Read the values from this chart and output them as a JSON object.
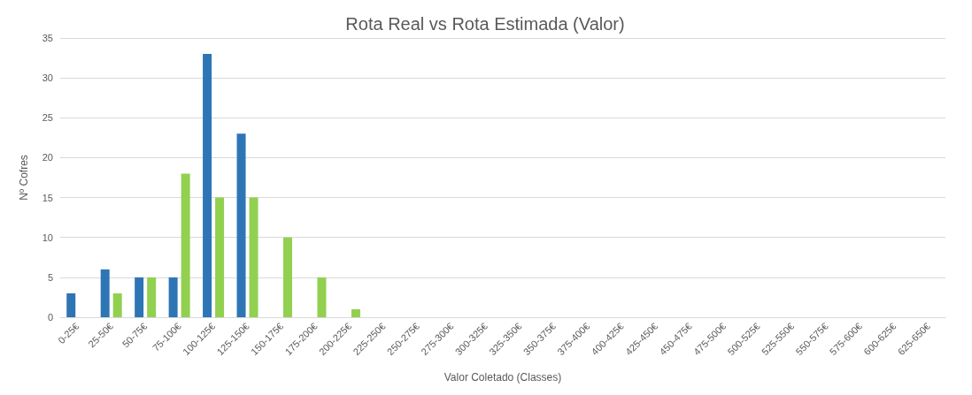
{
  "chart_data": {
    "type": "bar",
    "title": "Rota Real vs Rota Estimada (Valor)",
    "xlabel": "Valor Coletado (Classes)",
    "ylabel": "Nº Cofres",
    "categories": [
      "0-25€",
      "25-50€",
      "50-75€",
      "75-100€",
      "100-125€",
      "125-150€",
      "150-175€",
      "175-200€",
      "200-225€",
      "225-250€",
      "250-275€",
      "275-300€",
      "300-325€",
      "325-350€",
      "350-375€",
      "375-400€",
      "400-425€",
      "425-450€",
      "450-475€",
      "475-500€",
      "500-525€",
      "525-550€",
      "550-575€",
      "575-600€",
      "600-625€",
      "625-650€"
    ],
    "series": [
      {
        "color": "#2e75b6",
        "values": [
          3,
          6,
          5,
          5,
          33,
          23,
          0,
          0,
          0,
          0,
          0,
          0,
          0,
          0,
          0,
          0,
          0,
          0,
          0,
          0,
          0,
          0,
          0,
          0,
          0,
          0
        ]
      },
      {
        "color": "#92d050",
        "values": [
          0,
          3,
          5,
          18,
          15,
          15,
          10,
          5,
          1,
          0,
          0,
          0,
          0,
          0,
          0,
          0,
          0,
          0,
          0,
          0,
          0,
          0,
          0,
          0,
          0,
          0
        ]
      }
    ],
    "ylim": [
      0,
      35
    ],
    "yticks": [
      0,
      5,
      10,
      15,
      20,
      25,
      30,
      35
    ],
    "grid": "y"
  }
}
